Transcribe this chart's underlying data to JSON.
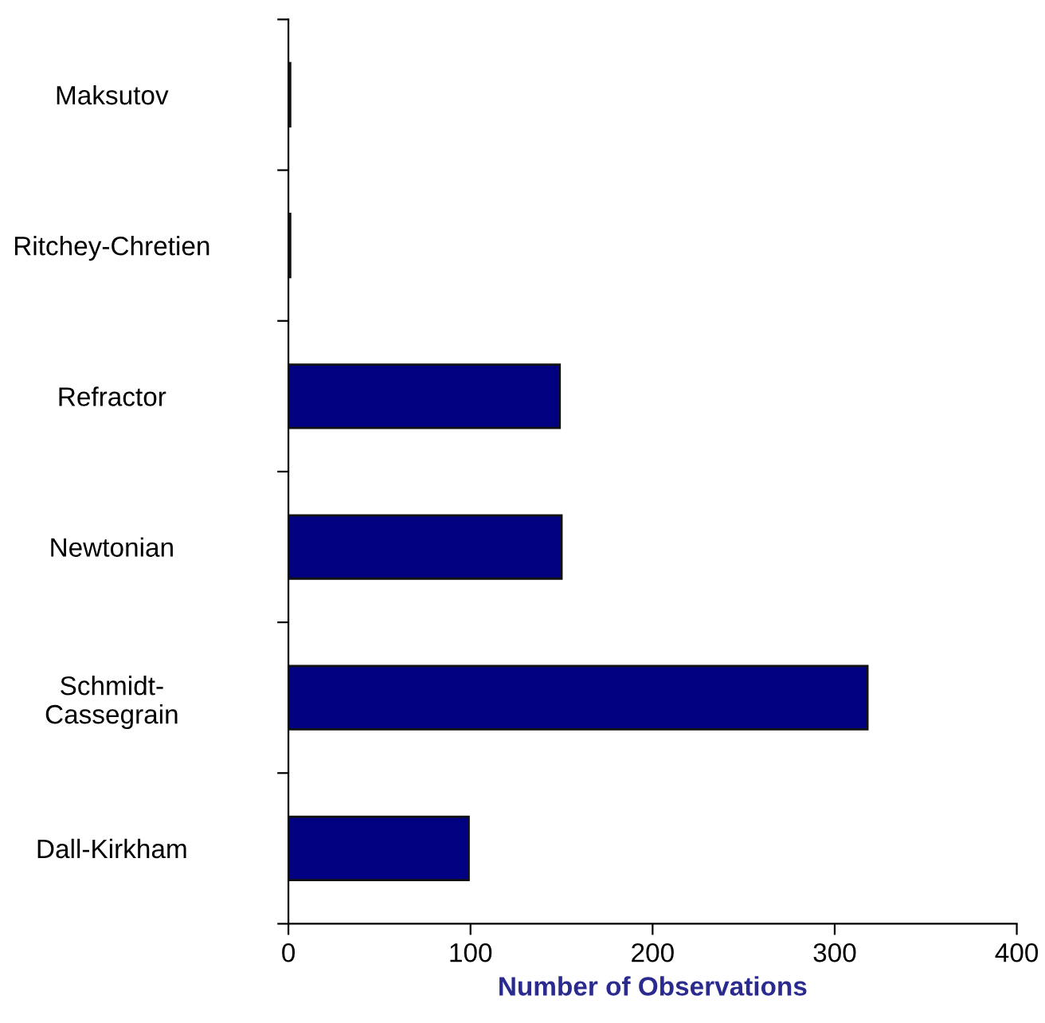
{
  "chart_data": {
    "type": "bar",
    "orientation": "horizontal",
    "xlabel": "Number of Observations",
    "categories": [
      "Maksutov",
      "Ritchey-Chretien",
      "Refractor",
      "Newtonian",
      "Schmidt-\nCassegrain",
      "Dall-Kirkham"
    ],
    "values": [
      1,
      1,
      149,
      150,
      318,
      99
    ],
    "color": "#000080",
    "xlim": [
      0,
      400
    ],
    "xticks": [
      0,
      100,
      200,
      300,
      400
    ],
    "grid": false,
    "legend": false
  }
}
